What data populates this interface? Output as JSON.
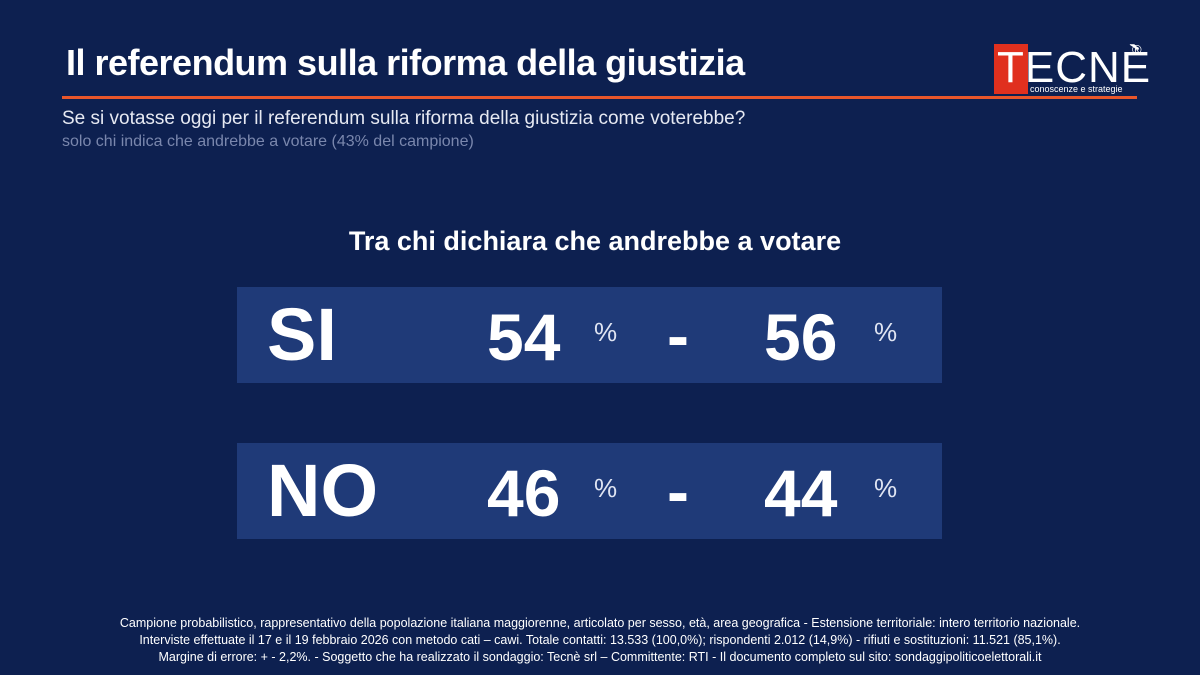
{
  "header": {
    "title": "Il referendum sulla riforma della giustizia",
    "question": "Se si votasse oggi per il referendum sulla riforma della giustizia come voterebbe?",
    "note": "solo chi indica che andrebbe a votare (43% del campione)"
  },
  "logo": {
    "text": "TECNÈ",
    "registered": "®",
    "tagline": "conoscenze e strategie"
  },
  "colors": {
    "background": "#0d2050",
    "panel": "#1f3a78",
    "accent": "#e8562a",
    "logo_red": "#e0301e"
  },
  "subheading": "Tra chi dichiara che andrebbe a votare",
  "results": [
    {
      "label": "SI",
      "low": "54",
      "low_unit": "%",
      "separator": "-",
      "high": "56",
      "high_unit": "%"
    },
    {
      "label": "NO",
      "low": "46",
      "low_unit": "%",
      "separator": "-",
      "high": "44",
      "high_unit": "%"
    }
  ],
  "footer": {
    "line1": "Campione probabilistico, rappresentativo della popolazione italiana maggiorenne, articolato per sesso, età, area geografica - Estensione territoriale: intero territorio nazionale.",
    "line2": "Interviste effettuate il 17 e il 19 febbraio 2026 con metodo cati – cawi. Totale contatti: 13.533 (100,0%); rispondenti 2.012 (14,9%) - rifiuti e sostituzioni: 11.521 (85,1%).",
    "line3": "Margine di errore: + - 2,2%.  - Soggetto che ha realizzato il sondaggio: Tecnè srl – Committente: RTI - Il documento completo sul sito: sondaggipoliticoelettorali.it"
  }
}
